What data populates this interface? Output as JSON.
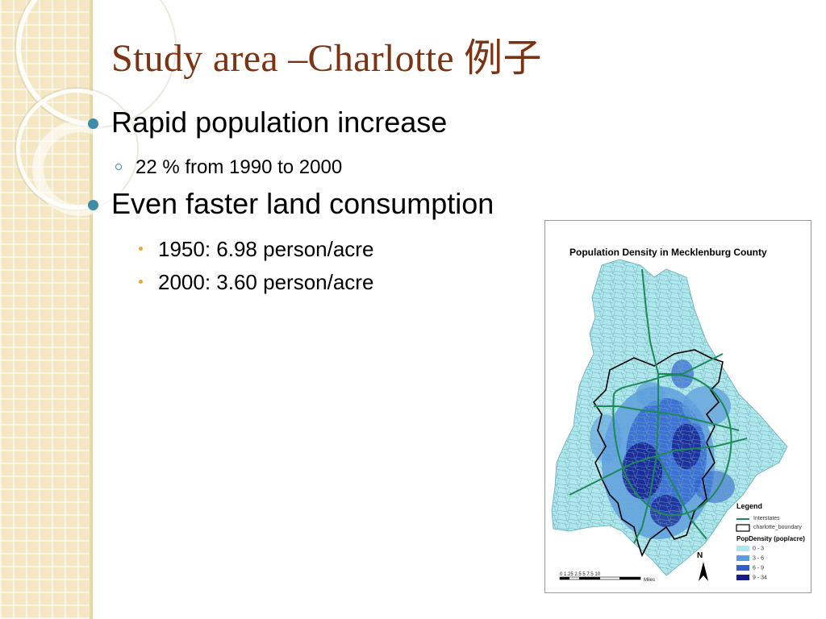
{
  "slide": {
    "title": "Study area –Charlotte 例子",
    "bullets": [
      {
        "text": "Rapid population increase"
      },
      {
        "text": "22 % from 1990 to 2000"
      },
      {
        "text": "Even faster land consumption"
      },
      {
        "text": "1950: 6.98 person/acre"
      },
      {
        "text": "2000: 3.60 person/acre"
      }
    ]
  },
  "map": {
    "title": "Population Density in Mecklenburg County",
    "legend_title": "Legend",
    "legend_lines": [
      "Interstates",
      "charlotte_boundary"
    ],
    "density_title": "PopDensity (pop/acre)",
    "density_classes": [
      {
        "label": "0 - 3",
        "color": "#aee8ec"
      },
      {
        "label": "3 - 6",
        "color": "#5b9be0"
      },
      {
        "label": "6 - 9",
        "color": "#2f5fcf"
      },
      {
        "label": "9 - 34",
        "color": "#141c8c"
      }
    ],
    "north_label": "N",
    "scale_label": "0  1.25 2.5      5      7.5     10",
    "scale_unit": "Miles"
  },
  "colors": {
    "title": "#7a3414",
    "bullet": "#3e8ca6",
    "sub_bullet": "#e2a838",
    "interstate": "#1c8a58"
  }
}
